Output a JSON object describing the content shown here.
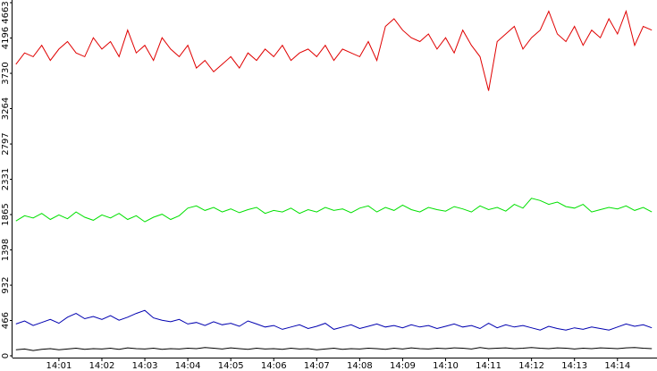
{
  "chart_data": {
    "type": "line",
    "x": [
      0,
      0.2,
      0.4,
      0.6,
      0.8,
      1,
      1.2,
      1.4,
      1.6,
      1.8,
      2,
      2.2,
      2.4,
      2.6,
      2.8,
      3,
      3.2,
      3.4,
      3.6,
      3.8,
      4,
      4.2,
      4.4,
      4.6,
      4.8,
      5,
      5.2,
      5.4,
      5.6,
      5.8,
      6,
      6.2,
      6.4,
      6.6,
      6.8,
      7,
      7.2,
      7.4,
      7.6,
      7.8,
      8,
      8.2,
      8.4,
      8.6,
      8.8,
      9,
      9.2,
      9.4,
      9.6,
      9.8,
      10,
      10.2,
      10.4,
      10.6,
      10.8,
      11,
      11.2,
      11.4,
      11.6,
      11.8,
      12,
      12.2,
      12.4,
      12.6,
      12.8,
      13,
      13.2,
      13.4,
      13.6,
      13.8,
      14,
      14.2,
      14.4,
      14.6,
      14.8
    ],
    "xlim": [
      -0.08,
      14.92
    ],
    "xticks": [
      {
        "value": 1,
        "label": "14:01"
      },
      {
        "value": 2,
        "label": "14:02"
      },
      {
        "value": 3,
        "label": "14:03"
      },
      {
        "value": 4,
        "label": "14:04"
      },
      {
        "value": 5,
        "label": "14:05"
      },
      {
        "value": 6,
        "label": "14:06"
      },
      {
        "value": 7,
        "label": "14:07"
      },
      {
        "value": 8,
        "label": "14:08"
      },
      {
        "value": 9,
        "label": "14:09"
      },
      {
        "value": 10,
        "label": "14:10"
      },
      {
        "value": 11,
        "label": "14:11"
      },
      {
        "value": 12,
        "label": "14:12"
      },
      {
        "value": 13,
        "label": "14:13"
      },
      {
        "value": 14,
        "label": "14:14"
      }
    ],
    "ylim": [
      0,
      4663
    ],
    "yticks": [
      0,
      466,
      932,
      1398,
      1865,
      2331,
      2797,
      3264,
      3730,
      4196,
      4663
    ],
    "series": [
      {
        "color": "#e00000",
        "values": [
          3850,
          4000,
          3950,
          4100,
          3900,
          4050,
          4150,
          4000,
          3950,
          4200,
          4050,
          4150,
          3950,
          4300,
          4000,
          4100,
          3900,
          4200,
          4050,
          3950,
          4100,
          3800,
          3900,
          3750,
          3850,
          3950,
          3800,
          4000,
          3900,
          4050,
          3950,
          4100,
          3900,
          4000,
          4050,
          3950,
          4100,
          3900,
          4050,
          4000,
          3950,
          4150,
          3900,
          4350,
          4450,
          4300,
          4200,
          4150,
          4250,
          4050,
          4200,
          4000,
          4300,
          4100,
          3950,
          3500,
          4150,
          4250,
          4350,
          4050,
          4200,
          4300,
          4550,
          4250,
          4150,
          4350,
          4100,
          4300,
          4200,
          4450,
          4250,
          4550,
          4100,
          4350,
          4300
        ]
      },
      {
        "color": "#00e000",
        "values": [
          1780,
          1850,
          1820,
          1880,
          1800,
          1860,
          1810,
          1900,
          1830,
          1790,
          1860,
          1820,
          1880,
          1800,
          1850,
          1770,
          1830,
          1870,
          1800,
          1850,
          1950,
          1980,
          1920,
          1960,
          1900,
          1940,
          1890,
          1930,
          1960,
          1880,
          1920,
          1900,
          1950,
          1880,
          1930,
          1900,
          1960,
          1920,
          1940,
          1890,
          1950,
          1980,
          1900,
          1960,
          1920,
          1990,
          1930,
          1900,
          1960,
          1930,
          1910,
          1970,
          1940,
          1900,
          1980,
          1930,
          1960,
          1910,
          2000,
          1950,
          2080,
          2050,
          2000,
          2030,
          1970,
          1950,
          2000,
          1900,
          1930,
          1960,
          1940,
          1980,
          1920,
          1960,
          1900
        ]
      },
      {
        "color": "#0000b0",
        "values": [
          420,
          460,
          400,
          440,
          480,
          430,
          510,
          560,
          490,
          520,
          480,
          530,
          470,
          510,
          560,
          600,
          500,
          470,
          450,
          480,
          420,
          440,
          400,
          450,
          410,
          430,
          390,
          460,
          420,
          380,
          400,
          350,
          380,
          410,
          360,
          390,
          430,
          350,
          380,
          410,
          360,
          390,
          420,
          380,
          400,
          370,
          410,
          380,
          400,
          360,
          390,
          420,
          380,
          400,
          360,
          430,
          370,
          410,
          380,
          400,
          370,
          340,
          390,
          360,
          340,
          370,
          350,
          380,
          360,
          340,
          380,
          420,
          390,
          410,
          370
        ]
      },
      {
        "color": "#000000",
        "values": [
          80,
          90,
          70,
          85,
          95,
          80,
          90,
          100,
          85,
          95,
          90,
          100,
          85,
          105,
          95,
          90,
          100,
          85,
          95,
          90,
          100,
          95,
          110,
          100,
          90,
          105,
          95,
          85,
          100,
          90,
          95,
          85,
          100,
          90,
          95,
          80,
          90,
          100,
          85,
          95,
          90,
          100,
          95,
          85,
          100,
          90,
          105,
          95,
          90,
          100,
          95,
          105,
          100,
          90,
          110,
          95,
          100,
          105,
          95,
          100,
          110,
          100,
          95,
          105,
          100,
          90,
          100,
          95,
          105,
          100,
          95,
          105,
          110,
          100,
          95
        ]
      }
    ]
  }
}
